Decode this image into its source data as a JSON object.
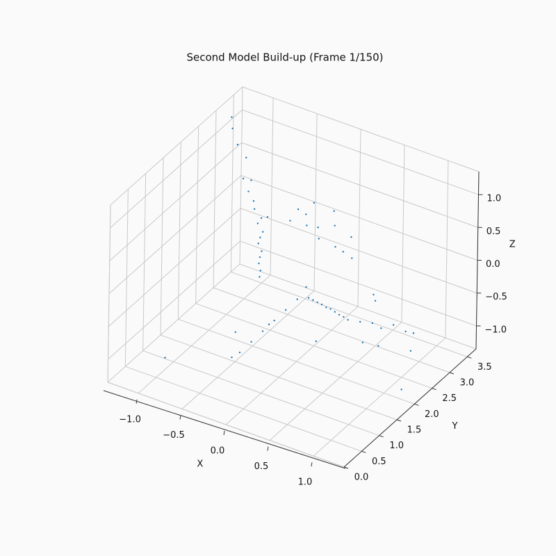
{
  "chart_data": {
    "type": "scatter3d",
    "title": "Second Model Build-up (Frame 1/150)",
    "xlabel": "X",
    "ylabel": "Y",
    "zlabel": "Z",
    "color": "#1f77b4",
    "grid": true,
    "xlim": [
      -1.35,
      1.35
    ],
    "ylim": [
      0,
      3.75
    ],
    "zlim": [
      -1.35,
      1.35
    ],
    "xticks": [
      {
        "value": -1,
        "label": "−1.0"
      },
      {
        "value": -0.5,
        "label": "−0.5"
      },
      {
        "value": 0,
        "label": "0.0"
      },
      0.5,
      {
        "value": 1,
        "label": "1.0"
      }
    ],
    "yticks": [
      {
        "value": 0,
        "label": "0.0"
      },
      0.5,
      {
        "value": 1,
        "label": "1.0"
      },
      1.5,
      {
        "value": 2,
        "label": "2.0"
      },
      2.5,
      {
        "value": 3,
        "label": "3.0"
      },
      3.5
    ],
    "zticks": [
      {
        "value": -1,
        "label": "−1.0"
      },
      {
        "value": -0.5,
        "label": "−0.5"
      },
      {
        "value": 0,
        "label": "0.0"
      },
      0.5,
      {
        "value": 1,
        "label": "1.0"
      }
    ],
    "x": [
      -0.63,
      -0.62,
      -0.64,
      -0.63,
      -0.61,
      -0.65,
      -0.63,
      -0.6,
      -0.66,
      -0.62,
      -0.7,
      -0.55,
      -0.25,
      -0.2,
      -0.15,
      -0.1,
      -0.05,
      0.0,
      0.02,
      -0.3,
      -0.12,
      0.05,
      0.1,
      0.15,
      0.2,
      0.25,
      0.3,
      0.35,
      0.4,
      0.45,
      0.5,
      0.6,
      0.7,
      0.8,
      0.9,
      1.0,
      1.05,
      0.75,
      0.85,
      1.1,
      0.65,
      0.55,
      -0.4,
      -0.35,
      -0.3,
      -0.25,
      -0.2,
      -0.1,
      -0.05,
      0.0,
      -0.3,
      -0.45,
      -0.15,
      0.05,
      0.1,
      -1.0,
      -1.1,
      -1.2,
      -1.25,
      -0.95,
      -0.85,
      -0.9,
      -0.75,
      -0.9,
      1.2,
      -0.5,
      0.3
    ],
    "y": [
      2.5,
      2.5,
      2.5,
      2.5,
      2.5,
      2.5,
      2.5,
      2.5,
      2.5,
      2.5,
      2.5,
      2.5,
      1.0,
      1.2,
      1.4,
      1.6,
      1.8,
      2.0,
      2.2,
      0.9,
      1.5,
      2.2,
      2.2,
      2.2,
      2.2,
      2.2,
      2.2,
      2.2,
      2.2,
      2.2,
      2.2,
      2.3,
      2.4,
      2.4,
      2.5,
      2.6,
      2.7,
      2.0,
      2.2,
      2.5,
      2.6,
      2.8,
      3.0,
      3.1,
      3.0,
      3.2,
      3.1,
      3.3,
      3.2,
      3.3,
      3.2,
      2.9,
      3.4,
      3.4,
      3.3,
      3.0,
      3.0,
      3.1,
      3.2,
      2.8,
      2.7,
      2.9,
      2.6,
      0.5,
      2.0,
      1.5,
      1.8
    ],
    "z": [
      -0.6,
      -0.5,
      -0.4,
      -0.3,
      -0.2,
      -0.1,
      0.0,
      0.1,
      0.2,
      0.3,
      0.4,
      0.35,
      -0.85,
      -0.76,
      -0.67,
      -0.58,
      -0.49,
      -0.4,
      -0.3,
      -0.9,
      -0.6,
      -0.45,
      -0.46,
      -0.47,
      -0.48,
      -0.5,
      -0.5,
      -0.52,
      -0.54,
      -0.55,
      -0.57,
      -0.6,
      -0.62,
      -0.65,
      -0.6,
      -0.7,
      -0.75,
      -0.7,
      -0.8,
      -0.9,
      -0.4,
      -0.45,
      0.3,
      0.2,
      0.1,
      0.0,
      -0.1,
      0.05,
      -0.2,
      -0.3,
      0.35,
      0.15,
      0.2,
      -0.1,
      -0.35,
      0.8,
      0.95,
      1.1,
      1.2,
      0.6,
      0.5,
      0.55,
      0.45,
      -1.0,
      -1.2,
      -0.9,
      -0.8
    ]
  }
}
